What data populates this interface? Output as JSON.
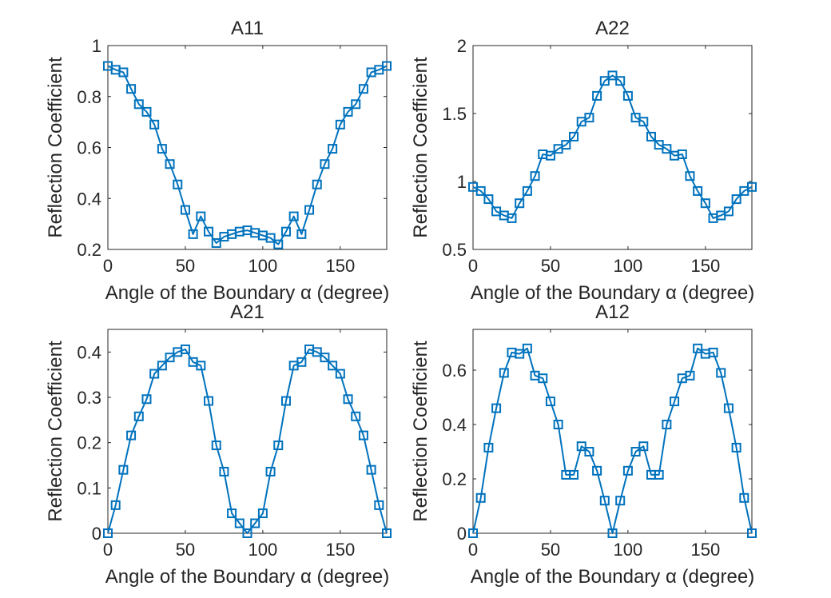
{
  "chart_data": [
    {
      "type": "line",
      "title": "A11",
      "xlabel": "Angle of the Boundary α (degree)",
      "ylabel": "Reflection Coefficient",
      "xlim": [
        0,
        180
      ],
      "ylim": [
        0.2,
        1
      ],
      "xticks": [
        "0",
        "50",
        "100",
        "150"
      ],
      "yticks": [
        "0.2",
        "0.4",
        "0.6",
        "0.8",
        "1"
      ],
      "grid": false,
      "color": "#0072BD",
      "marker": "square",
      "x": [
        0,
        5,
        10,
        15,
        20,
        25,
        30,
        35,
        40,
        45,
        50,
        55,
        60,
        65,
        70,
        75,
        80,
        85,
        90,
        95,
        100,
        105,
        110,
        115,
        120,
        125,
        130,
        135,
        140,
        145,
        150,
        155,
        160,
        165,
        170,
        175,
        180
      ],
      "y": [
        0.92,
        0.905,
        0.895,
        0.83,
        0.77,
        0.74,
        0.69,
        0.595,
        0.535,
        0.455,
        0.355,
        0.26,
        0.33,
        0.27,
        0.225,
        0.25,
        0.26,
        0.27,
        0.275,
        0.265,
        0.255,
        0.245,
        0.22,
        0.27,
        0.33,
        0.26,
        0.355,
        0.455,
        0.535,
        0.595,
        0.69,
        0.74,
        0.77,
        0.83,
        0.895,
        0.905,
        0.92
      ]
    },
    {
      "type": "line",
      "title": "A22",
      "xlabel": "Angle of the Boundary α (degree)",
      "ylabel": "Reflection Coefficient",
      "xlim": [
        0,
        180
      ],
      "ylim": [
        0.5,
        2
      ],
      "xticks": [
        "0",
        "50",
        "100",
        "150"
      ],
      "yticks": [
        "0.5",
        "1",
        "1.5",
        "2"
      ],
      "grid": false,
      "color": "#0072BD",
      "marker": "square",
      "x": [
        0,
        5,
        10,
        15,
        20,
        25,
        30,
        35,
        40,
        45,
        50,
        55,
        60,
        65,
        70,
        75,
        80,
        85,
        90,
        95,
        100,
        105,
        110,
        115,
        120,
        125,
        130,
        135,
        140,
        145,
        150,
        155,
        160,
        165,
        170,
        175,
        180
      ],
      "y": [
        0.96,
        0.93,
        0.87,
        0.78,
        0.75,
        0.73,
        0.84,
        0.93,
        1.04,
        1.2,
        1.19,
        1.24,
        1.27,
        1.33,
        1.44,
        1.47,
        1.63,
        1.74,
        1.78,
        1.74,
        1.63,
        1.47,
        1.44,
        1.33,
        1.27,
        1.24,
        1.19,
        1.2,
        1.04,
        0.93,
        0.84,
        0.73,
        0.75,
        0.78,
        0.87,
        0.93,
        0.96
      ]
    },
    {
      "type": "line",
      "title": "A21",
      "xlabel": "Angle of the Boundary α (degree)",
      "ylabel": "Reflection Coefficient",
      "xlim": [
        0,
        180
      ],
      "ylim": [
        0,
        0.45
      ],
      "xticks": [
        "0",
        "50",
        "100",
        "150"
      ],
      "yticks": [
        "0",
        "0.1",
        "0.2",
        "0.3",
        "0.4"
      ],
      "grid": false,
      "color": "#0072BD",
      "marker": "square",
      "x": [
        0,
        5,
        10,
        15,
        20,
        25,
        30,
        35,
        40,
        45,
        50,
        55,
        60,
        65,
        70,
        75,
        80,
        85,
        90,
        95,
        100,
        105,
        110,
        115,
        120,
        125,
        130,
        135,
        140,
        145,
        150,
        155,
        160,
        165,
        170,
        175,
        180
      ],
      "y": [
        0,
        0.062,
        0.14,
        0.216,
        0.258,
        0.296,
        0.352,
        0.37,
        0.388,
        0.4,
        0.406,
        0.378,
        0.37,
        0.292,
        0.194,
        0.136,
        0.044,
        0.022,
        0,
        0.022,
        0.044,
        0.136,
        0.194,
        0.292,
        0.37,
        0.378,
        0.406,
        0.4,
        0.388,
        0.37,
        0.352,
        0.296,
        0.258,
        0.216,
        0.14,
        0.062,
        0
      ]
    },
    {
      "type": "line",
      "title": "A12",
      "xlabel": "Angle of the Boundary α (degree)",
      "ylabel": "Reflection Coefficient",
      "xlim": [
        0,
        180
      ],
      "ylim": [
        0,
        0.75
      ],
      "xticks": [
        "0",
        "50",
        "100",
        "150"
      ],
      "yticks": [
        "0",
        "0.2",
        "0.4",
        "0.6"
      ],
      "grid": false,
      "color": "#0072BD",
      "marker": "square",
      "x": [
        0,
        5,
        10,
        15,
        20,
        25,
        30,
        35,
        40,
        45,
        50,
        55,
        60,
        65,
        70,
        75,
        80,
        85,
        90,
        95,
        100,
        105,
        110,
        115,
        120,
        125,
        130,
        135,
        140,
        145,
        150,
        155,
        160,
        165,
        170,
        175,
        180
      ],
      "y": [
        0,
        0.13,
        0.315,
        0.46,
        0.59,
        0.665,
        0.66,
        0.68,
        0.58,
        0.57,
        0.485,
        0.4,
        0.215,
        0.215,
        0.32,
        0.3,
        0.23,
        0.12,
        0,
        0.12,
        0.23,
        0.3,
        0.32,
        0.215,
        0.215,
        0.4,
        0.485,
        0.57,
        0.58,
        0.68,
        0.66,
        0.665,
        0.59,
        0.46,
        0.315,
        0.13,
        0
      ]
    }
  ]
}
